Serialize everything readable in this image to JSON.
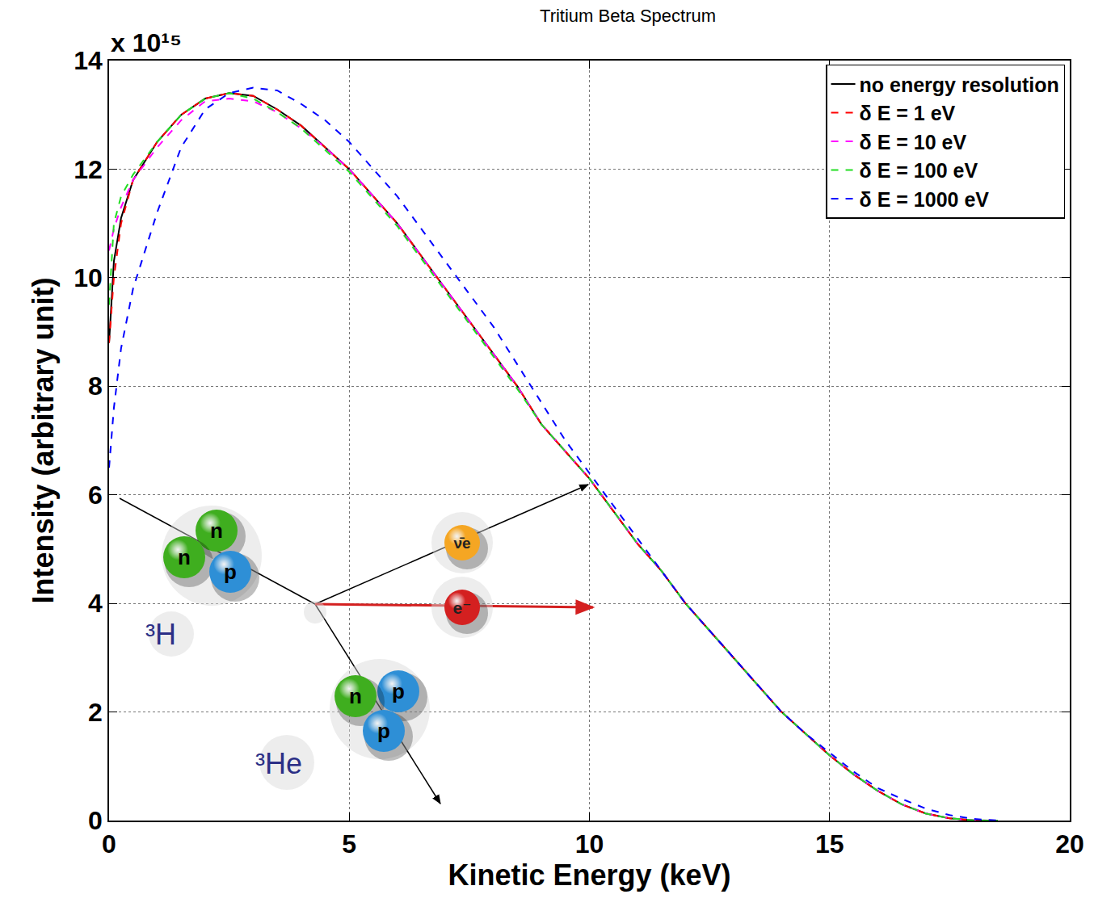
{
  "chart_data": {
    "type": "line",
    "title": "Tritium Beta Spectrum",
    "x_label": "Kinetic Energy (keV)",
    "y_label": "Intensity (arbitrary unit)",
    "y_multiplier_label": "x 10¹⁵",
    "x": [
      0,
      0.1,
      0.25,
      0.5,
      1,
      1.5,
      2,
      2.5,
      3,
      3.5,
      4,
      4.5,
      5,
      5.5,
      6,
      6.5,
      7,
      7.5,
      8,
      8.5,
      9,
      9.5,
      10,
      10.5,
      11,
      11.5,
      12,
      12.5,
      13,
      13.5,
      14,
      14.5,
      15,
      15.5,
      16,
      16.5,
      17,
      17.5,
      18,
      18.5
    ],
    "series": [
      {
        "name": "no energy resolution",
        "color": "#000000",
        "line_style": "solid",
        "values": [
          8.8,
          10.3,
          11.1,
          11.8,
          12.5,
          13.0,
          13.3,
          13.4,
          13.35,
          13.1,
          12.8,
          12.4,
          12.0,
          11.5,
          11.0,
          10.4,
          9.8,
          9.2,
          8.6,
          8.0,
          7.3,
          6.8,
          6.3,
          5.7,
          5.1,
          4.6,
          4.0,
          3.5,
          3.0,
          2.5,
          2.0,
          1.6,
          1.2,
          0.85,
          0.55,
          0.3,
          0.13,
          0.04,
          0.005,
          0
        ]
      },
      {
        "name": "δ E = 1 eV",
        "color": "#ff0000",
        "line_style": "dash",
        "values": [
          8.8,
          10.0,
          11.0,
          11.8,
          12.5,
          13.0,
          13.3,
          13.4,
          13.35,
          13.1,
          12.8,
          12.4,
          12.0,
          11.5,
          11.0,
          10.4,
          9.8,
          9.2,
          8.6,
          8.0,
          7.3,
          6.8,
          6.3,
          5.7,
          5.1,
          4.6,
          4.0,
          3.5,
          3.0,
          2.5,
          2.0,
          1.6,
          1.2,
          0.85,
          0.55,
          0.3,
          0.13,
          0.04,
          0.005,
          0
        ]
      },
      {
        "name": "δ E = 10 eV",
        "color": "#ff00ff",
        "line_style": "dash",
        "values": [
          10.5,
          10.9,
          11.3,
          11.8,
          12.4,
          12.9,
          13.25,
          13.3,
          13.25,
          13.05,
          12.75,
          12.4,
          12.0,
          11.5,
          11.0,
          10.4,
          9.8,
          9.2,
          8.6,
          8.0,
          7.3,
          6.8,
          6.3,
          5.7,
          5.1,
          4.6,
          4.0,
          3.5,
          3.0,
          2.5,
          2.0,
          1.6,
          1.2,
          0.85,
          0.55,
          0.3,
          0.13,
          0.04,
          0.005,
          0
        ]
      },
      {
        "name": "δ E = 100 eV",
        "color": "#22dd22",
        "line_style": "dash",
        "values": [
          9.5,
          11.0,
          11.5,
          11.9,
          12.5,
          13.0,
          13.3,
          13.4,
          13.3,
          13.05,
          12.75,
          12.35,
          11.95,
          11.45,
          10.95,
          10.35,
          9.75,
          9.15,
          8.55,
          7.95,
          7.3,
          6.8,
          6.3,
          5.7,
          5.1,
          4.6,
          4.0,
          3.5,
          3.0,
          2.5,
          2.0,
          1.6,
          1.2,
          0.85,
          0.55,
          0.3,
          0.13,
          0.04,
          0.005,
          0
        ]
      },
      {
        "name": "δ E = 1000 eV",
        "color": "#0000ff",
        "line_style": "dash",
        "values": [
          6.5,
          7.6,
          8.7,
          9.8,
          11.2,
          12.4,
          13.1,
          13.4,
          13.5,
          13.45,
          13.2,
          12.9,
          12.5,
          12.0,
          11.5,
          10.9,
          10.3,
          9.7,
          9.1,
          8.4,
          7.7,
          7.0,
          6.4,
          5.8,
          5.2,
          4.6,
          4.0,
          3.5,
          3.0,
          2.5,
          2.0,
          1.6,
          1.25,
          0.9,
          0.6,
          0.4,
          0.22,
          0.1,
          0.03,
          0.0
        ]
      }
    ],
    "xlim": [
      0,
      20
    ],
    "xticks": [
      0,
      5,
      10,
      15,
      20
    ],
    "ylim": [
      0,
      14
    ],
    "yticks": [
      0,
      2,
      4,
      6,
      8,
      10,
      12,
      14
    ],
    "grid": true,
    "legend": "top right"
  },
  "diagram": {
    "parent": {
      "label": "³H",
      "nucleons": [
        {
          "label": "n",
          "color": "#3fae1f"
        },
        {
          "label": "n",
          "color": "#3fae1f"
        },
        {
          "label": "p",
          "color": "#2e8fd6"
        }
      ]
    },
    "daughter": {
      "label": "³He",
      "nucleons": [
        {
          "label": "n",
          "color": "#3fae1f"
        },
        {
          "label": "p",
          "color": "#2e8fd6"
        },
        {
          "label": "p",
          "color": "#2e8fd6"
        }
      ]
    },
    "antineutrino": {
      "label": "ν̄e",
      "color": "#f5a623"
    },
    "electron": {
      "label": "e⁻",
      "color": "#d42020"
    }
  }
}
